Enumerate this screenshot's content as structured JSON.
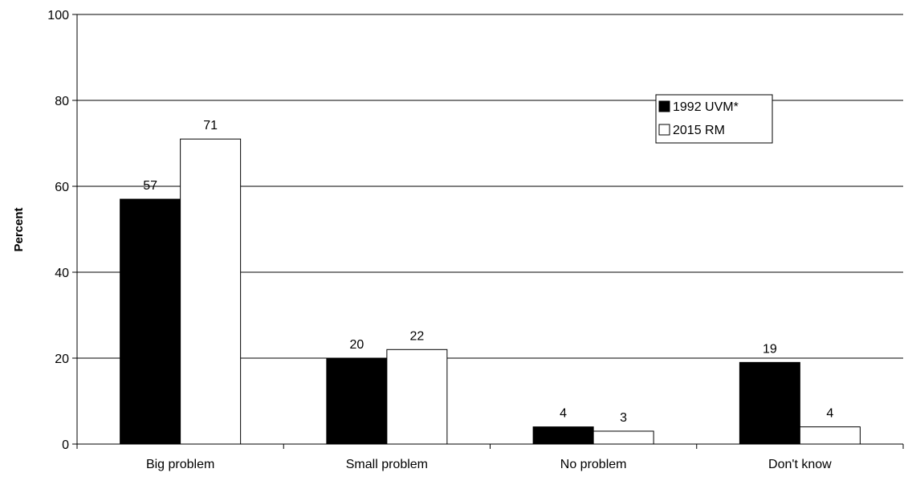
{
  "chart_data": {
    "type": "bar",
    "categories": [
      "Big problem",
      "Small problem",
      "No problem",
      "Don't know"
    ],
    "series": [
      {
        "name": "1992 UVM*",
        "values": [
          57,
          20,
          4,
          19
        ],
        "color": "#000000"
      },
      {
        "name": "2015 RM",
        "values": [
          71,
          22,
          3,
          4
        ],
        "color": "#ffffff"
      }
    ],
    "data_labels": [
      [
        "57",
        "20",
        "4",
        "19"
      ],
      [
        "71",
        "22",
        "3",
        "4"
      ]
    ],
    "ylabel": "Percent",
    "ylim": [
      0,
      100
    ],
    "yticks": [
      "0",
      "20",
      "40",
      "60",
      "80",
      "100"
    ],
    "grid": true,
    "legend_position": "top-right"
  }
}
